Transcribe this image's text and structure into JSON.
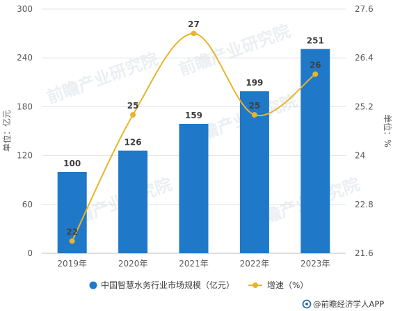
{
  "chart_data": {
    "type": "bar+line",
    "categories": [
      "2019年",
      "2020年",
      "2021年",
      "2022年",
      "2023年"
    ],
    "series": [
      {
        "name": "中国智慧水务行业市场规模（亿元）",
        "type": "bar",
        "axis": "left",
        "values": [
          100,
          126,
          159,
          199,
          251
        ],
        "color": "#1f78c8"
      },
      {
        "name": "增速（%）",
        "type": "line",
        "axis": "right",
        "values": [
          22,
          25,
          27,
          25,
          26
        ],
        "plot_values": [
          21.9,
          25.0,
          27.0,
          25.0,
          26.0
        ],
        "color": "#e8b428"
      }
    ],
    "ylabel_left": "单位：亿元",
    "ylabel_right": "单位：%",
    "ylim_left": [
      0,
      300
    ],
    "yticks_left": [
      "0",
      "60",
      "120",
      "180",
      "240",
      "300"
    ],
    "ylim_right": [
      21.6,
      27.6
    ],
    "yticks_right": [
      "21.6",
      "22.8",
      "24",
      "25.2",
      "26.4",
      "27.6"
    ],
    "grid": true,
    "legend_position": "bottom"
  },
  "watermark": "前瞻产业研究院",
  "source": "@前瞻经济学人APP"
}
